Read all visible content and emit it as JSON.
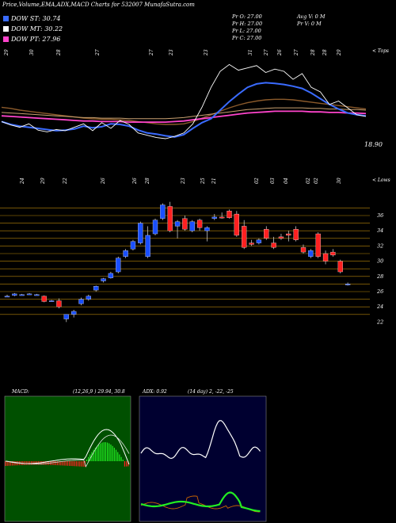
{
  "header": "Price,Volume,EMA,ADX,MACD Charts for 532007 MunafaSutra.com",
  "legend": [
    {
      "label": "DOW ST: 30.74",
      "color": "#3a6bff"
    },
    {
      "label": "DOW MT: 30.22",
      "color": "#ffffff"
    },
    {
      "label": "DOW PT: 27.96",
      "color": "#ff44cc"
    }
  ],
  "stats": {
    "pr_o": "Pr  O: 27.00",
    "pr_h": "Pr  H: 27.00",
    "pr_l": "Pr  L: 27.00",
    "pr_c": "Pr  C: 27.00",
    "avg_v": "Avg V: 0  M",
    "pr_v": "Pr  V: 0  M"
  },
  "top_label": "< Tops",
  "low_label": "< Lows",
  "last_price": "18.90",
  "top_dates": [
    "29",
    "30",
    "28",
    "27",
    "27",
    "23",
    "23",
    "31",
    "27",
    "26",
    "27",
    "28",
    "28",
    "29"
  ],
  "low_dates": [
    "24",
    "29",
    "22",
    "26",
    "26",
    "28",
    "23",
    "25",
    "21",
    "02",
    "03",
    "04",
    "02",
    "02",
    "30"
  ],
  "price_axis": [
    "36",
    "34",
    "32",
    "30",
    "28",
    "26",
    "24",
    "22"
  ],
  "macd": {
    "label": "MACD:",
    "params": "(12,26,9 ) 29.94,  30.8"
  },
  "adx": {
    "label": "ADX: 0.92",
    "params": "(14  day) 2,  -22,  -25"
  },
  "colors": {
    "up": "#1a4fff",
    "down": "#ff2020",
    "grid": "#b8860b"
  },
  "chart_data": {
    "type": "candlestick",
    "ylim": [
      22,
      38
    ],
    "yticks": [
      36,
      34,
      32,
      30,
      28,
      26,
      24,
      22
    ],
    "candles": [
      {
        "o": 25.4,
        "h": 25.6,
        "l": 25.3,
        "c": 25.4
      },
      {
        "o": 25.5,
        "h": 25.8,
        "l": 25.4,
        "c": 25.7
      },
      {
        "o": 25.6,
        "h": 25.7,
        "l": 25.5,
        "c": 25.6
      },
      {
        "o": 25.7,
        "h": 25.8,
        "l": 25.6,
        "c": 25.7
      },
      {
        "o": 25.6,
        "h": 25.7,
        "l": 25.5,
        "c": 25.6
      },
      {
        "o": 25.4,
        "h": 25.5,
        "l": 24.6,
        "c": 24.7
      },
      {
        "o": 24.8,
        "h": 24.9,
        "l": 24.7,
        "c": 24.8
      },
      {
        "o": 24.8,
        "h": 25.1,
        "l": 23.8,
        "c": 24.0
      },
      {
        "o": 22.4,
        "h": 23.0,
        "l": 22.0,
        "c": 23.0
      },
      {
        "o": 23.0,
        "h": 23.6,
        "l": 22.6,
        "c": 23.4
      },
      {
        "o": 24.4,
        "h": 25.2,
        "l": 24.2,
        "c": 25.0
      },
      {
        "o": 25.0,
        "h": 25.6,
        "l": 24.8,
        "c": 25.4
      },
      {
        "o": 26.2,
        "h": 26.8,
        "l": 26.0,
        "c": 26.7
      },
      {
        "o": 27.4,
        "h": 27.8,
        "l": 27.2,
        "c": 27.7
      },
      {
        "o": 27.8,
        "h": 28.6,
        "l": 27.7,
        "c": 28.4
      },
      {
        "o": 28.6,
        "h": 30.6,
        "l": 28.4,
        "c": 30.4
      },
      {
        "o": 30.6,
        "h": 31.6,
        "l": 30.4,
        "c": 31.4
      },
      {
        "o": 31.6,
        "h": 32.8,
        "l": 31.4,
        "c": 32.6
      },
      {
        "o": 32.4,
        "h": 35.2,
        "l": 32.2,
        "c": 35.0
      },
      {
        "o": 30.6,
        "h": 34.6,
        "l": 30.4,
        "c": 33.4
      },
      {
        "o": 33.6,
        "h": 35.6,
        "l": 33.4,
        "c": 35.4
      },
      {
        "o": 35.6,
        "h": 37.6,
        "l": 35.4,
        "c": 37.4
      },
      {
        "o": 37.2,
        "h": 37.8,
        "l": 33.8,
        "c": 34.0
      },
      {
        "o": 34.6,
        "h": 35.4,
        "l": 33.0,
        "c": 35.2
      },
      {
        "o": 35.6,
        "h": 36.0,
        "l": 34.0,
        "c": 34.2
      },
      {
        "o": 34.0,
        "h": 35.4,
        "l": 33.8,
        "c": 35.2
      },
      {
        "o": 35.4,
        "h": 35.6,
        "l": 34.0,
        "c": 34.4
      },
      {
        "o": 34.0,
        "h": 34.6,
        "l": 32.6,
        "c": 34.4
      },
      {
        "o": 35.6,
        "h": 36.2,
        "l": 35.4,
        "c": 35.8
      },
      {
        "o": 35.8,
        "h": 36.4,
        "l": 35.6,
        "c": 35.7
      },
      {
        "o": 36.6,
        "h": 36.8,
        "l": 35.6,
        "c": 35.7
      },
      {
        "o": 36.2,
        "h": 36.6,
        "l": 33.2,
        "c": 33.4
      },
      {
        "o": 34.6,
        "h": 35.4,
        "l": 31.6,
        "c": 31.8
      },
      {
        "o": 32.4,
        "h": 32.8,
        "l": 32.0,
        "c": 32.2
      },
      {
        "o": 32.4,
        "h": 33.0,
        "l": 32.2,
        "c": 32.8
      },
      {
        "o": 34.2,
        "h": 34.6,
        "l": 32.8,
        "c": 33.0
      },
      {
        "o": 32.4,
        "h": 33.2,
        "l": 31.6,
        "c": 31.8
      },
      {
        "o": 33.2,
        "h": 33.6,
        "l": 32.8,
        "c": 33.0
      },
      {
        "o": 33.6,
        "h": 34.0,
        "l": 32.6,
        "c": 33.4
      },
      {
        "o": 34.2,
        "h": 34.6,
        "l": 32.6,
        "c": 32.8
      },
      {
        "o": 31.8,
        "h": 32.2,
        "l": 31.0,
        "c": 31.2
      },
      {
        "o": 30.6,
        "h": 31.6,
        "l": 30.4,
        "c": 31.4
      },
      {
        "o": 33.6,
        "h": 33.8,
        "l": 30.4,
        "c": 30.6
      },
      {
        "o": 31.0,
        "h": 31.4,
        "l": 29.6,
        "c": 30.0
      },
      {
        "o": 31.2,
        "h": 31.6,
        "l": 30.6,
        "c": 30.8
      },
      {
        "o": 30.0,
        "h": 30.2,
        "l": 28.4,
        "c": 28.6
      },
      {
        "o": 27.0,
        "h": 27.2,
        "l": 26.8,
        "c": 27.0
      }
    ],
    "ema_fast": [
      18.0,
      17.5,
      17.2,
      17.0,
      16.8,
      16.6,
      16.4,
      16.5,
      16.7,
      17.2,
      16.9,
      17.1,
      17.6,
      17.5,
      17.2,
      16.5,
      16.0,
      15.8,
      15.5,
      15.3,
      15.7,
      16.8,
      17.8,
      18.5,
      20.0,
      21.5,
      22.8,
      24.0,
      24.6,
      24.8,
      24.7,
      24.5,
      24.2,
      23.8,
      23.0,
      22.0,
      21.0,
      20.2,
      19.5,
      19.2,
      19.0
    ],
    "ema_slow": [
      20.5,
      20.3,
      20.0,
      19.8,
      19.6,
      19.4,
      19.2,
      19.0,
      18.8,
      18.6,
      18.5,
      18.4,
      18.4,
      18.3,
      18.2,
      18.0,
      17.8,
      17.6,
      17.5,
      17.5,
      17.6,
      18.0,
      18.6,
      19.2,
      19.8,
      20.4,
      20.9,
      21.3,
      21.6,
      21.8,
      21.9,
      21.9,
      21.8,
      21.6,
      21.4,
      21.2,
      21.0,
      20.8,
      20.6,
      20.4,
      20.2
    ],
    "ema_long": [
      19.6,
      19.5,
      19.4,
      19.3,
      19.2,
      19.1,
      19.0,
      18.9,
      18.8,
      18.7,
      18.7,
      18.6,
      18.6,
      18.6,
      18.5,
      18.5,
      18.5,
      18.5,
      18.5,
      18.6,
      18.7,
      18.9,
      19.1,
      19.3,
      19.5,
      19.7,
      19.9,
      20.1,
      20.2,
      20.3,
      20.4,
      20.4,
      20.4,
      20.4,
      20.3,
      20.3,
      20.2,
      20.2,
      20.1,
      20.1,
      20.0
    ],
    "price_line": [
      18.0,
      17.4,
      17.0,
      17.6,
      16.5,
      16.2,
      16.6,
      16.4,
      17.0,
      17.6,
      16.4,
      17.8,
      16.8,
      18.2,
      17.5,
      16.0,
      15.6,
      15.2,
      15.0,
      15.4,
      16.0,
      17.6,
      20.5,
      24.0,
      26.8,
      28.0,
      27.0,
      27.4,
      27.8,
      26.6,
      27.2,
      26.8,
      25.4,
      26.4,
      24.0,
      23.2,
      21.0,
      21.6,
      20.4,
      19.2,
      18.9
    ]
  }
}
